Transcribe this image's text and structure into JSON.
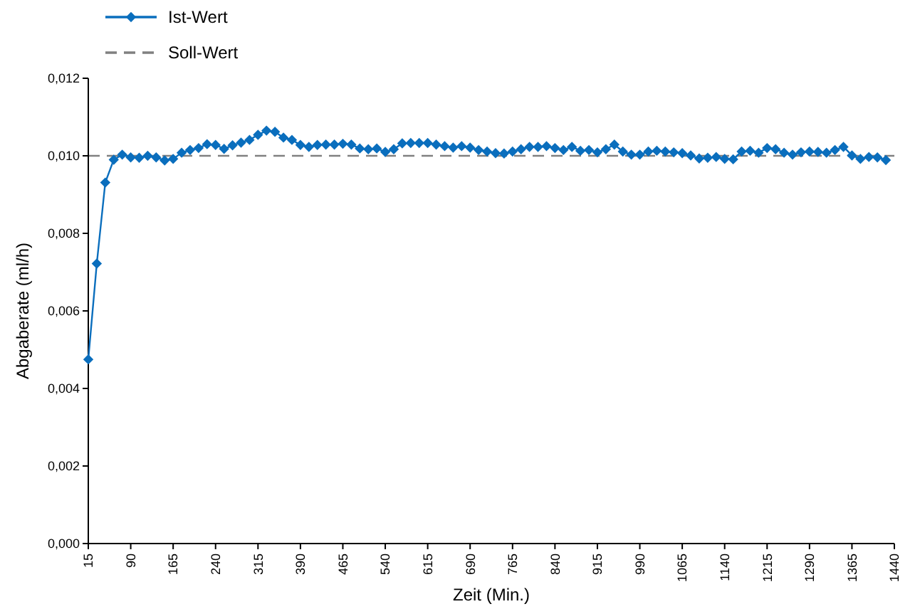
{
  "chart_data": {
    "type": "line",
    "xlabel": "Zeit (Min.)",
    "ylabel": "Abgaberate (ml/h)",
    "x": [
      15,
      30,
      45,
      60,
      75,
      90,
      105,
      120,
      135,
      150,
      165,
      180,
      195,
      210,
      225,
      240,
      255,
      270,
      285,
      300,
      315,
      330,
      345,
      360,
      375,
      390,
      405,
      420,
      435,
      450,
      465,
      480,
      495,
      510,
      525,
      540,
      555,
      570,
      585,
      600,
      615,
      630,
      645,
      660,
      675,
      690,
      705,
      720,
      735,
      750,
      765,
      780,
      795,
      810,
      825,
      840,
      855,
      870,
      885,
      900,
      915,
      930,
      945,
      960,
      975,
      990,
      1005,
      1020,
      1035,
      1050,
      1065,
      1080,
      1095,
      1110,
      1125,
      1140,
      1155,
      1170,
      1185,
      1200,
      1215,
      1230,
      1245,
      1260,
      1275,
      1290,
      1305,
      1320,
      1335,
      1350,
      1365,
      1380,
      1395,
      1410,
      1425
    ],
    "series": [
      {
        "name": "Ist-Wert",
        "color": "#0a6ebd",
        "marker": "diamond",
        "line_style": "solid",
        "values": [
          0.00475,
          0.00722,
          0.00931,
          0.0099,
          0.01003,
          0.00996,
          0.00995,
          0.01,
          0.00996,
          0.00988,
          0.00992,
          0.01008,
          0.01015,
          0.0102,
          0.0103,
          0.01028,
          0.01018,
          0.01027,
          0.01034,
          0.01041,
          0.01054,
          0.01065,
          0.01062,
          0.01047,
          0.01041,
          0.01028,
          0.01023,
          0.01028,
          0.01029,
          0.01029,
          0.01031,
          0.01029,
          0.01019,
          0.01017,
          0.01019,
          0.0101,
          0.01017,
          0.01032,
          0.01033,
          0.01033,
          0.01033,
          0.01029,
          0.01025,
          0.01021,
          0.01025,
          0.01021,
          0.01015,
          0.01011,
          0.01007,
          0.01006,
          0.01011,
          0.01017,
          0.01023,
          0.01023,
          0.01025,
          0.0102,
          0.01015,
          0.01023,
          0.01013,
          0.01015,
          0.01009,
          0.01017,
          0.01029,
          0.01011,
          0.01003,
          0.01003,
          0.01011,
          0.01013,
          0.01011,
          0.01009,
          0.01007,
          0.01001,
          0.00993,
          0.00995,
          0.00997,
          0.00992,
          0.00991,
          0.01011,
          0.01013,
          0.01008,
          0.0102,
          0.01017,
          0.01008,
          0.01003,
          0.01009,
          0.01011,
          0.0101,
          0.01008,
          0.01015,
          0.01023,
          0.01001,
          0.00992,
          0.00997,
          0.00996,
          0.00989
        ]
      }
    ],
    "xlim": [
      15,
      1440
    ],
    "xticks": [
      15,
      90,
      165,
      240,
      315,
      390,
      465,
      540,
      615,
      690,
      765,
      840,
      915,
      990,
      1065,
      1140,
      1215,
      1290,
      1365,
      1440
    ],
    "ylim": [
      0,
      0.012
    ],
    "yticks": [
      {
        "value": 0,
        "label": "0,000"
      },
      {
        "value": 0.002,
        "label": "0,002"
      },
      {
        "value": 0.004,
        "label": "0,004"
      },
      {
        "value": 0.006,
        "label": "0,006"
      },
      {
        "value": 0.008,
        "label": "0,008"
      },
      {
        "value": 0.01,
        "label": "0,010"
      },
      {
        "value": 0.012,
        "label": "0,012"
      }
    ],
    "ref_lines": [
      {
        "axis": "y",
        "value": 0.01,
        "label": "Soll-Wert",
        "color": "#808080",
        "line_style": "dashed"
      }
    ],
    "legend": "top left",
    "grid": false
  }
}
